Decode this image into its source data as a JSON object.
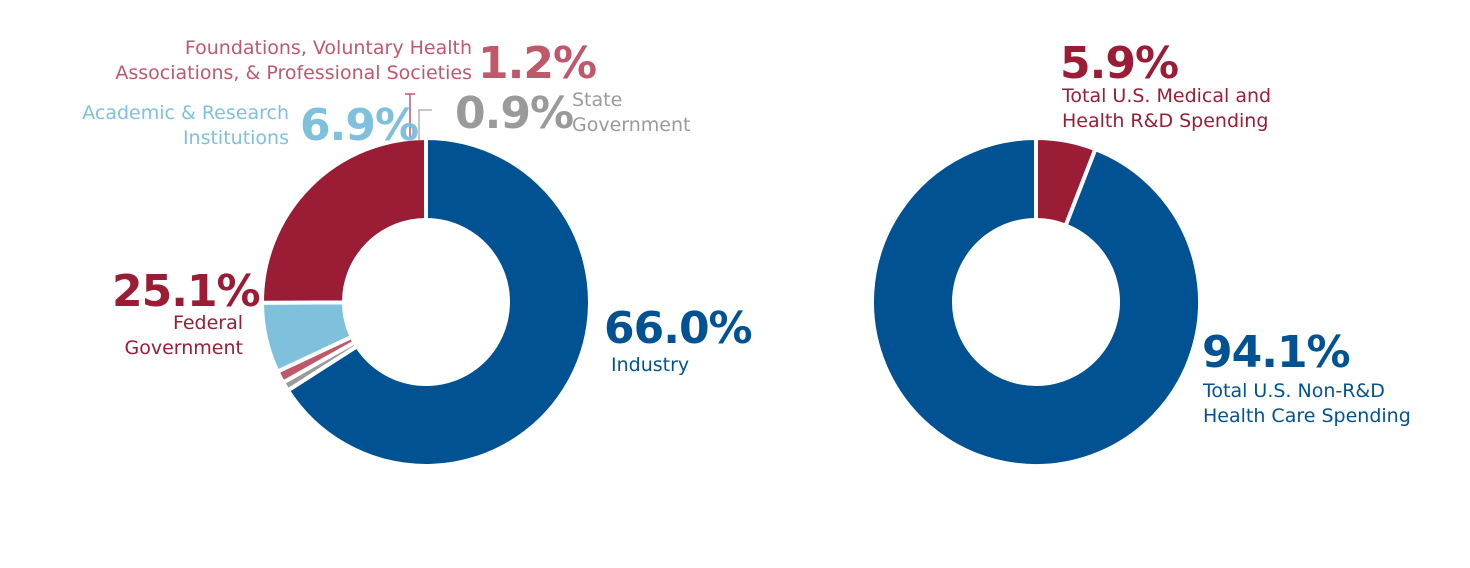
{
  "colors": {
    "industry": "#005293",
    "federal": "#9b1c35",
    "academic": "#7fc1dd",
    "foundations": "#c0586c",
    "state": "#9a9a9a",
    "separator": "#ffffff"
  },
  "chart_data": [
    {
      "type": "pie",
      "variant": "donut",
      "title": "",
      "slices": [
        {
          "label": "Industry",
          "value": 66.0,
          "value_label": "66.0%",
          "color_key": "industry"
        },
        {
          "label": "State Government",
          "value": 0.9,
          "value_label": "0.9%",
          "color_key": "state"
        },
        {
          "label": "Foundations, Voluntary Health Associations, & Professional Societies",
          "value": 1.2,
          "value_label": "1.2%",
          "color_key": "foundations"
        },
        {
          "label": "Academic & Research Institutions",
          "value": 6.9,
          "value_label": "6.9%",
          "color_key": "academic"
        },
        {
          "label": "Federal Government",
          "value": 25.1,
          "value_label": "25.1%",
          "color_key": "federal"
        }
      ],
      "label_lines": {
        "industry": [
          "Industry"
        ],
        "state": [
          "State",
          "Government"
        ],
        "foundations": [
          "Foundations, Voluntary Health",
          "Associations, & Professional Societies"
        ],
        "academic": [
          "Academic & Research",
          "Institutions"
        ],
        "federal": [
          "Federal",
          "Government"
        ]
      }
    },
    {
      "type": "pie",
      "variant": "donut",
      "title": "",
      "slices": [
        {
          "label": "Total U.S. Medical and Health R&D Spending",
          "value": 5.9,
          "value_label": "5.9%",
          "color_key": "federal"
        },
        {
          "label": "Total U.S. Non-R&D Health Care Spending",
          "value": 94.1,
          "value_label": "94.1%",
          "color_key": "industry"
        }
      ],
      "label_lines": {
        "rd": [
          "Total U.S. Medical and",
          "Health R&D Spending"
        ],
        "nonrd": [
          "Total U.S. Non-R&D",
          "Health Care Spending"
        ]
      }
    }
  ]
}
